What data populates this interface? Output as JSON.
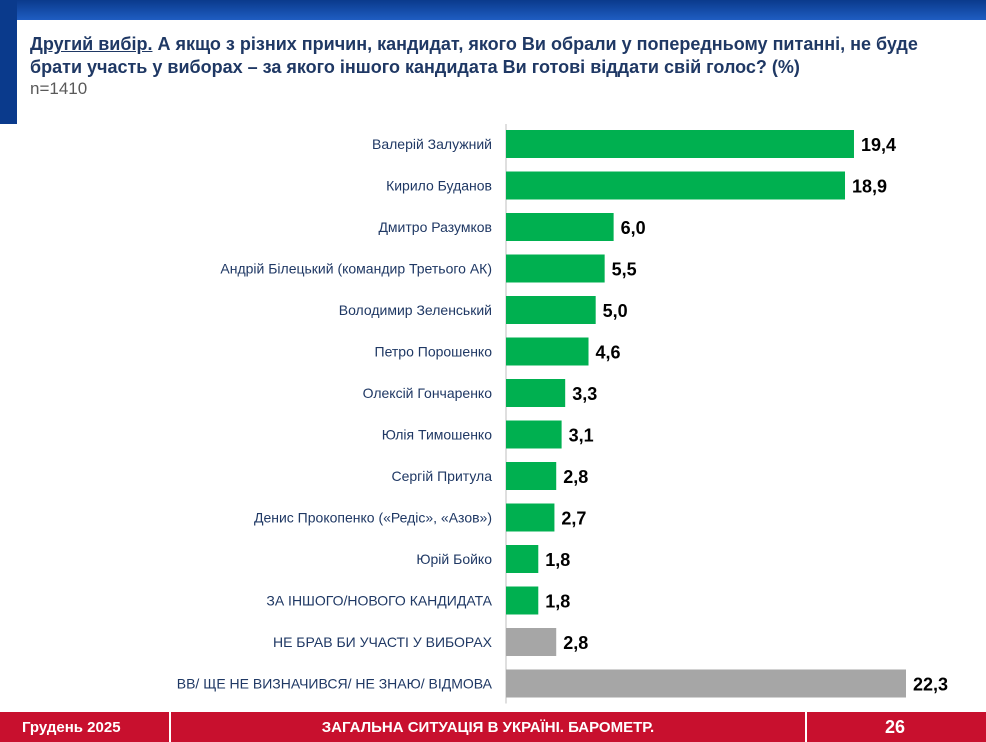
{
  "header": {
    "title_lead": "Другий вибір.",
    "title_rest": " А якщо з різних причин, кандидат, якого Ви обрали у попередньому питанні, не буде брати участь у виборах – за якого іншого кандидата Ви готові віддати свій голос? (%)",
    "sample": "n=1410"
  },
  "chart_data": {
    "type": "bar",
    "orientation": "horizontal",
    "title": "Другий вибір. А якщо з різних причин, кандидат, якого Ви обрали у попередньому питанні, не буде брати участь у виборах – за якого іншого кандидата Ви готові віддати свій голос? (%)",
    "xlabel": "",
    "ylabel": "",
    "xlim": [
      0,
      22.3
    ],
    "grid": false,
    "categories": [
      "Валерій Залужний",
      "Кирило Буданов",
      "Дмитро Разумков",
      "Андрій Білецький (командир Третього АК)",
      "Володимир Зеленський",
      "Петро Порошенко",
      "Олексій Гончаренко",
      "Юлія Тимошенко",
      "Сергій Притула",
      "Денис Прокопенко («Редіс», «Азов»)",
      "Юрій Бойко",
      "ЗА ІНШОГО/НОВОГО КАНДИДАТА",
      "НЕ БРАВ БИ УЧАСТІ У ВИБОРАХ",
      "ВВ/ ЩЕ НЕ ВИЗНАЧИВСЯ/ НЕ ЗНАЮ/ ВІДМОВА"
    ],
    "values": [
      19.4,
      18.9,
      6.0,
      5.5,
      5.0,
      4.6,
      3.3,
      3.1,
      2.8,
      2.7,
      1.8,
      1.8,
      2.8,
      22.3
    ],
    "labels": [
      "19,4",
      "18,9",
      "6,0",
      "5,5",
      "5,0",
      "4,6",
      "3,3",
      "3,1",
      "2,8",
      "2,7",
      "1,8",
      "1,8",
      "2,8",
      "22,3"
    ],
    "bar_colors": [
      "#00b050",
      "#00b050",
      "#00b050",
      "#00b050",
      "#00b050",
      "#00b050",
      "#00b050",
      "#00b050",
      "#00b050",
      "#00b050",
      "#00b050",
      "#00b050",
      "#a6a6a6",
      "#a6a6a6"
    ]
  },
  "footer": {
    "date": "Грудень 2025",
    "title": "ЗАГАЛЬНА СИТУАЦІЯ В УКРАЇНІ. БАРОМЕТР.",
    "page": "26"
  }
}
